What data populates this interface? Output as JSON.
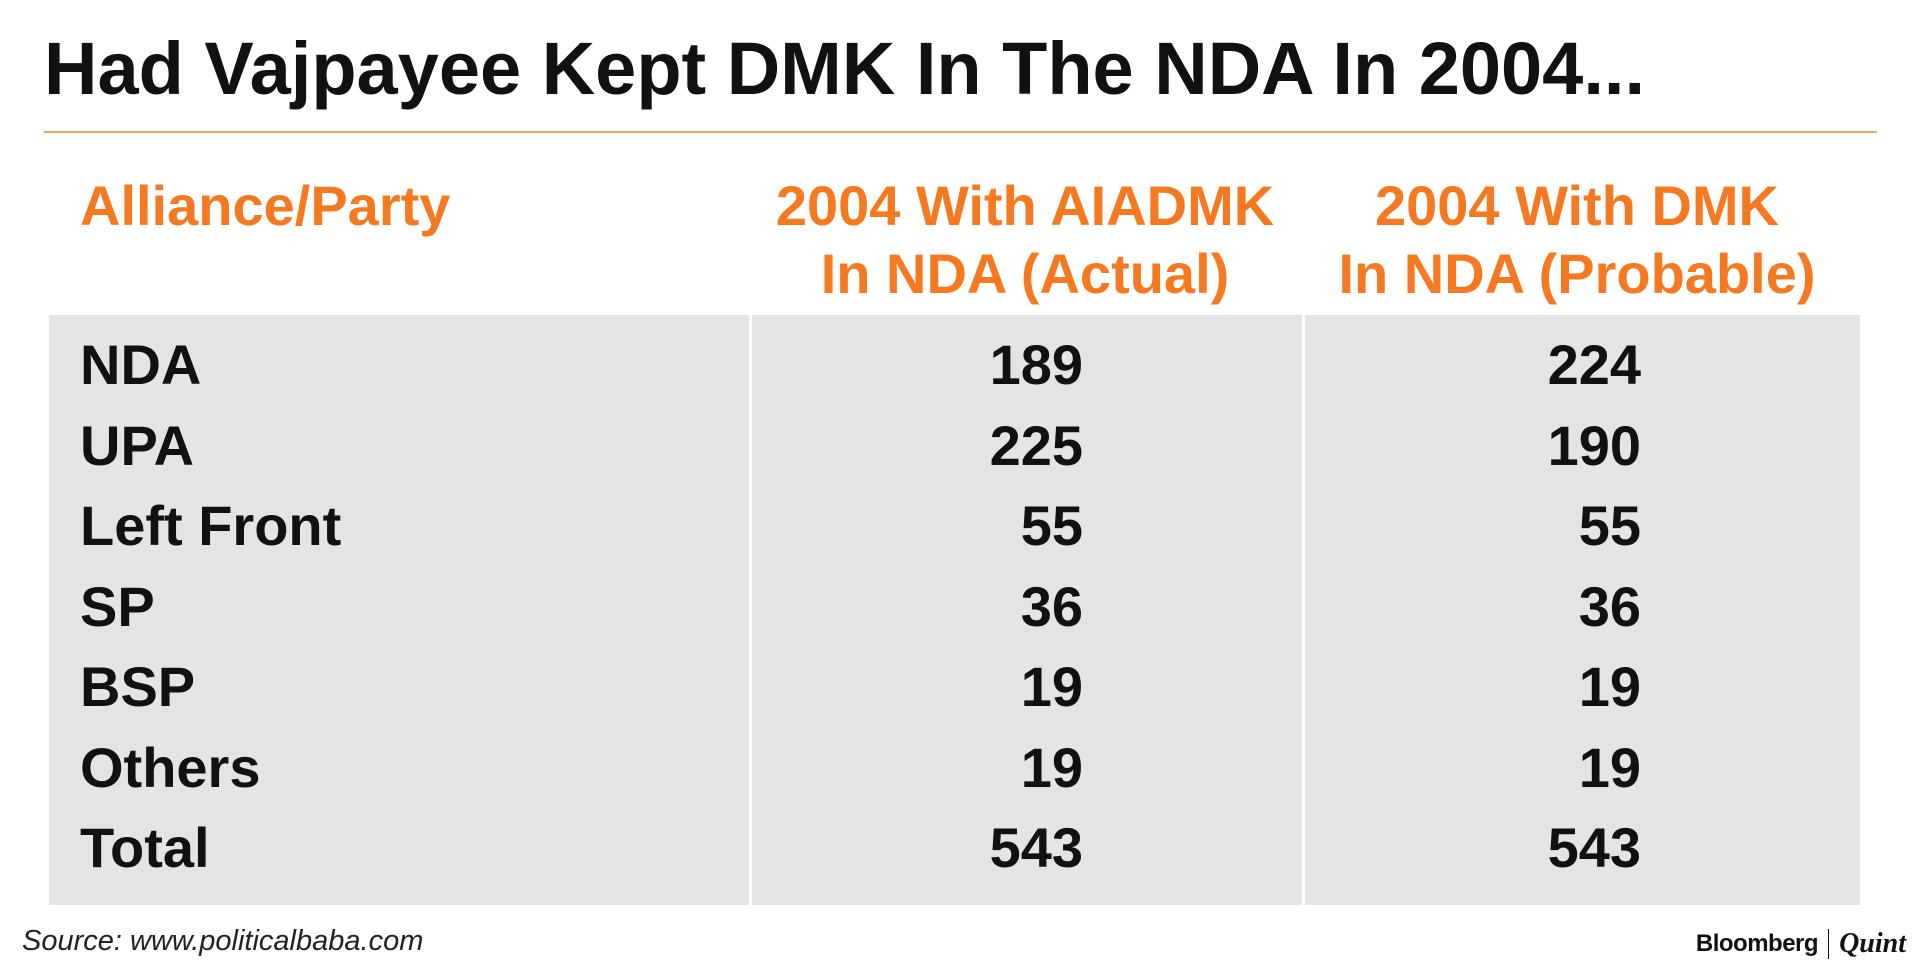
{
  "title": "Had Vajpayee Kept DMK In The NDA In 2004...",
  "colors": {
    "accent": "#f47920",
    "rule": "#f7a25c",
    "table_bg": "#e4e4e4",
    "text": "#111111"
  },
  "chart_data": {
    "type": "table",
    "title": "Had Vajpayee Kept DMK In The NDA In 2004...",
    "columns": [
      {
        "line1": "Alliance/Party",
        "line2": ""
      },
      {
        "line1": "2004 With AIADMK",
        "line2": "In NDA (Actual)"
      },
      {
        "line1": "2004 With DMK",
        "line2": "In NDA (Probable)"
      }
    ],
    "rows": [
      {
        "label": "NDA",
        "actual": "189",
        "probable": "224"
      },
      {
        "label": "UPA",
        "actual": "225",
        "probable": "190"
      },
      {
        "label": "Left Front",
        "actual": "55",
        "probable": "55"
      },
      {
        "label": "SP",
        "actual": "36",
        "probable": "36"
      },
      {
        "label": "BSP",
        "actual": "19",
        "probable": "19"
      },
      {
        "label": "Others",
        "actual": "19",
        "probable": "19"
      },
      {
        "label": "Total",
        "actual": "543",
        "probable": "543"
      }
    ]
  },
  "footer": {
    "source": "Source: www.politicalbaba.com",
    "brand_left": "Bloomberg",
    "brand_right": "Quint"
  }
}
